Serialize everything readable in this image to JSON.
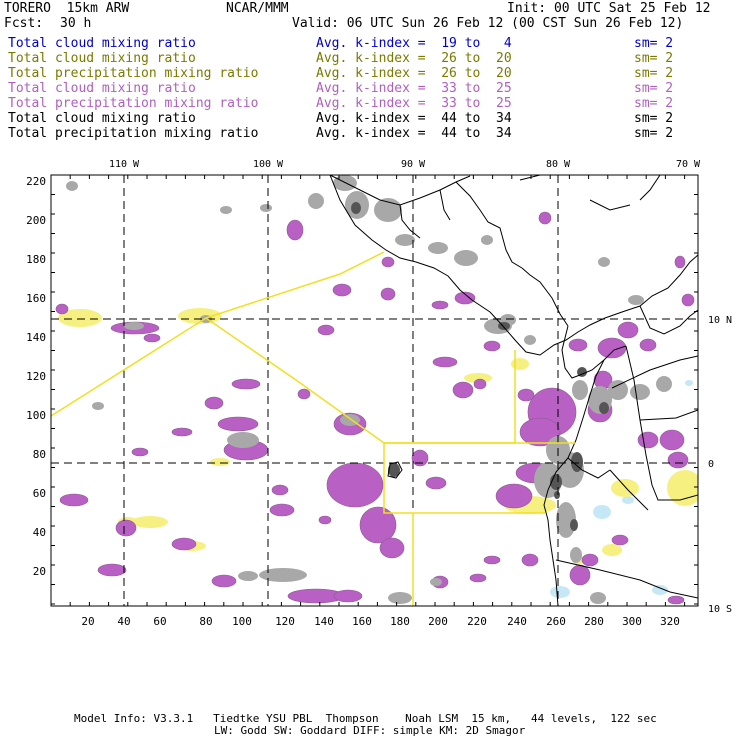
{
  "header": {
    "model": "TORERO  15km ARW",
    "org": "NCAR/MMM",
    "init": "Init: 00 UTC Sat 25 Feb 12",
    "fcst_label": "Fcst:",
    "fcst_value": "30 h",
    "valid": "Valid: 06 UTC Sun 26 Feb 12 (00 CST Sun 26 Feb 12)"
  },
  "legend": [
    {
      "field": "Total cloud mixing ratio",
      "index": "Avg. k-index =  19 to   4",
      "sm": "sm= 2",
      "color": "#0000cc"
    },
    {
      "field": "Total cloud mixing ratio",
      "index": "Avg. k-index =  26 to  20",
      "sm": "sm= 2",
      "color": "#7a7a00"
    },
    {
      "field": "Total precipitation mixing ratio",
      "index": "Avg. k-index =  26 to  20",
      "sm": "sm= 2",
      "color": "#7a7a00"
    },
    {
      "field": "Total cloud mixing ratio",
      "index": "Avg. k-index =  33 to  25",
      "sm": "sm= 2",
      "color": "#b060c0"
    },
    {
      "field": "Total precipitation mixing ratio",
      "index": "Avg. k-index =  33 to  25",
      "sm": "sm= 2",
      "color": "#b060c0"
    },
    {
      "field": "Total cloud mixing ratio",
      "index": "Avg. k-index =  44 to  34",
      "sm": "sm= 2",
      "color": "#000000"
    },
    {
      "field": "Total precipitation mixing ratio",
      "index": "Avg. k-index =  44 to  34",
      "sm": "sm= 2",
      "color": "#000000"
    }
  ],
  "map": {
    "lon_labels": [
      "110 W",
      "100 W",
      "90 W",
      "80 W",
      "70 W"
    ],
    "lat_labels": [
      "10 N",
      "0",
      "10 S"
    ],
    "x_ticks": [
      "20",
      "40",
      "60",
      "80",
      "100",
      "120",
      "140",
      "160",
      "180",
      "200",
      "220",
      "240",
      "260",
      "280",
      "300",
      "320"
    ],
    "y_ticks": [
      "220",
      "200",
      "180",
      "160",
      "140",
      "120",
      "100",
      "80",
      "60",
      "40",
      "20"
    ],
    "colors": {
      "cloud_gray": "#a8a8a8",
      "dark_gray": "#555555",
      "purple": "#b860c4",
      "yellow_fill": "#f6f080",
      "light_blue": "#c6e8f6",
      "flight_track": "#f0e020"
    }
  },
  "footer": {
    "line1": "Model Info: V3.3.1   Tiedtke YSU PBL  Thompson    Noah LSM  15 km,   44 levels,  122 sec",
    "line2": "LW: Godd SW: Goddard DIFF: simple KM: 2D Smagor"
  }
}
